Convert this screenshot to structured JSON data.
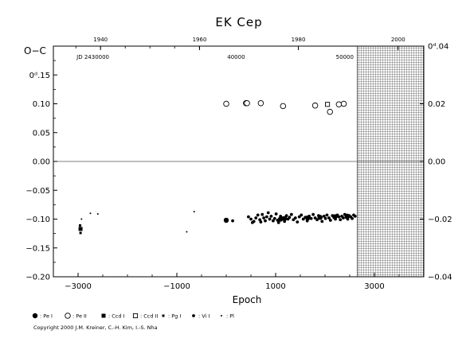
{
  "chart_data": {
    "type": "scatter",
    "title": "EK Cep",
    "xlabel": "Epoch",
    "ylabel": "O−C",
    "xlim": [
      -3500,
      4000
    ],
    "ylim": [
      -0.2,
      0.2
    ],
    "x_ticks": [
      {
        "value": -3000,
        "label": "−3000"
      },
      {
        "value": -1000,
        "label": "−1000"
      },
      {
        "value": 1000,
        "label": "1000"
      },
      {
        "value": 3000,
        "label": "3000"
      }
    ],
    "y_ticks": [
      {
        "value": 0.15,
        "label": "0ᵈ.15"
      },
      {
        "value": 0.1,
        "label": "0.10"
      },
      {
        "value": 0.05,
        "label": "0.05"
      },
      {
        "value": 0.0,
        "label": "0.00"
      },
      {
        "value": -0.05,
        "label": "−0.05"
      },
      {
        "value": -0.1,
        "label": "−0.10"
      },
      {
        "value": -0.15,
        "label": "−0.15"
      },
      {
        "value": -0.2,
        "label": "−0.20"
      }
    ],
    "top_year_ticks": [
      {
        "value": -2545,
        "label": "1940"
      },
      {
        "value": -540,
        "label": "1960"
      },
      {
        "value": 1460,
        "label": "1980"
      },
      {
        "value": 3480,
        "label": "2000"
      }
    ],
    "jd_labels": [
      {
        "x": -2700,
        "label": "JD 2430000"
      },
      {
        "x": 200,
        "label": "40000"
      },
      {
        "x": 2400,
        "label": "50000"
      }
    ],
    "right_ticks": [
      {
        "value": 0.04,
        "label": "0ᵈ.04"
      },
      {
        "value": 0.02,
        "label": "0.02"
      },
      {
        "value": 0.0,
        "label": "0.00"
      },
      {
        "value": -0.02,
        "label": "−0.02"
      },
      {
        "value": -0.04,
        "label": "−0.04"
      }
    ],
    "right_axis_scale": 5,
    "hatched_region_start": 2650,
    "series": [
      {
        "marker": "filled-large",
        "legend": ": Pe I",
        "points": [
          [
            0,
            -0.102
          ],
          [
            1100,
            -0.1
          ],
          [
            1180,
            -0.099
          ],
          [
            1650,
            -0.098
          ],
          [
            1900,
            -0.097
          ],
          [
            2200,
            -0.096
          ],
          [
            2450,
            -0.095
          ]
        ]
      },
      {
        "marker": "open-circle",
        "legend": ": Pe II",
        "points": [
          [
            0,
            0.1
          ],
          [
            400,
            0.101
          ],
          [
            420,
            0.101
          ],
          [
            700,
            0.101
          ],
          [
            1150,
            0.096
          ],
          [
            1800,
            0.097
          ],
          [
            2100,
            0.086
          ],
          [
            2280,
            0.099
          ],
          [
            2380,
            0.1
          ]
        ]
      },
      {
        "marker": "filled-square",
        "legend": ": Ccd I",
        "points": [
          [
            -2950,
            -0.117
          ]
        ]
      },
      {
        "marker": "open-square",
        "legend": ": Ccd II",
        "points": [
          [
            2050,
            0.099
          ]
        ]
      },
      {
        "marker": "filled-square-small",
        "legend": ": Pg I",
        "points": [
          [
            -2960,
            -0.111
          ],
          [
            -2950,
            -0.124
          ]
        ]
      },
      {
        "marker": "dot",
        "legend": ": Vi I",
        "points": [
          [
            130,
            -0.103
          ],
          [
            450,
            -0.096
          ],
          [
            500,
            -0.1
          ],
          [
            530,
            -0.106
          ],
          [
            560,
            -0.104
          ],
          [
            600,
            -0.098
          ],
          [
            640,
            -0.093
          ],
          [
            680,
            -0.101
          ],
          [
            700,
            -0.105
          ],
          [
            730,
            -0.092
          ],
          [
            760,
            -0.098
          ],
          [
            790,
            -0.103
          ],
          [
            820,
            -0.096
          ],
          [
            850,
            -0.089
          ],
          [
            880,
            -0.1
          ],
          [
            910,
            -0.095
          ],
          [
            950,
            -0.103
          ],
          [
            980,
            -0.099
          ],
          [
            1010,
            -0.091
          ],
          [
            1040,
            -0.102
          ],
          [
            1060,
            -0.106
          ],
          [
            1100,
            -0.095
          ],
          [
            1140,
            -0.098
          ],
          [
            1180,
            -0.104
          ],
          [
            1220,
            -0.094
          ],
          [
            1250,
            -0.1
          ],
          [
            1280,
            -0.097
          ],
          [
            1320,
            -0.092
          ],
          [
            1360,
            -0.101
          ],
          [
            1400,
            -0.098
          ],
          [
            1440,
            -0.105
          ],
          [
            1480,
            -0.096
          ],
          [
            1520,
            -0.093
          ],
          [
            1560,
            -0.1
          ],
          [
            1600,
            -0.097
          ],
          [
            1640,
            -0.103
          ],
          [
            1680,
            -0.095
          ],
          [
            1720,
            -0.099
          ],
          [
            1760,
            -0.092
          ],
          [
            1800,
            -0.098
          ],
          [
            1840,
            -0.101
          ],
          [
            1870,
            -0.094
          ],
          [
            1900,
            -0.097
          ],
          [
            1940,
            -0.104
          ],
          [
            1980,
            -0.095
          ],
          [
            2010,
            -0.099
          ],
          [
            2040,
            -0.093
          ],
          [
            2080,
            -0.098
          ],
          [
            2110,
            -0.102
          ],
          [
            2150,
            -0.094
          ],
          [
            2180,
            -0.097
          ],
          [
            2210,
            -0.1
          ],
          [
            2250,
            -0.093
          ],
          [
            2280,
            -0.096
          ],
          [
            2310,
            -0.101
          ],
          [
            2340,
            -0.095
          ],
          [
            2370,
            -0.098
          ],
          [
            2400,
            -0.092
          ],
          [
            2430,
            -0.097
          ],
          [
            2460,
            -0.1
          ],
          [
            2490,
            -0.094
          ],
          [
            2520,
            -0.096
          ],
          [
            2550,
            -0.099
          ],
          [
            2580,
            -0.093
          ],
          [
            2610,
            -0.095
          ]
        ]
      },
      {
        "marker": "tiny-dot",
        "legend": ": Pl",
        "points": [
          [
            -2750,
            -0.09
          ],
          [
            -2600,
            -0.091
          ],
          [
            -2930,
            -0.1
          ],
          [
            -800,
            -0.122
          ],
          [
            -650,
            -0.087
          ]
        ]
      }
    ],
    "legend_placement": "bottom",
    "grid": false
  },
  "footer": {
    "copyright": "Copyright 2000 J.M. Kreiner, C.-H. Kim, I.-S. Nha"
  }
}
